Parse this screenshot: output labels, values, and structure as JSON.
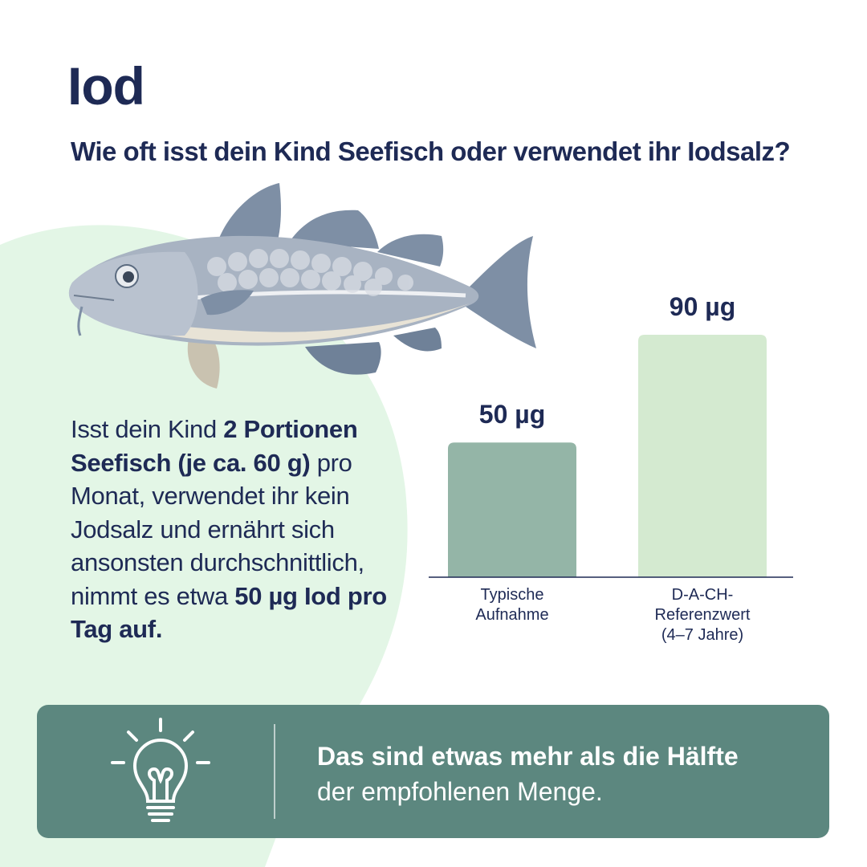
{
  "page": {
    "title": "Iod",
    "question": "Wie oft isst dein Kind Seefisch oder verwendet ihr Iodsalz?"
  },
  "body_text": {
    "part1": "Isst dein Kind ",
    "part2": "2 Portionen Seefisch (je ca. 60 g)",
    "part3": " pro Monat, verwendet ihr kein Jodsalz und ernährt sich ansonsten durchschnittlich, nimmt es etwa ",
    "part4": "50 µg Iod pro Tag auf."
  },
  "chart_data": {
    "type": "bar",
    "categories": [
      [
        "Typische",
        "Aufnahme"
      ],
      [
        "D-A-CH-",
        "Referenzwert",
        "(4–7 Jahre)"
      ]
    ],
    "values": [
      50,
      90
    ],
    "value_labels": [
      "50 µg",
      "90 µg"
    ],
    "colors": [
      "#94b5a7",
      "#d4ead0"
    ],
    "ylim": [
      0,
      90
    ],
    "grid": false
  },
  "tip": {
    "strong": "Das sind etwas mehr als die Hälfte",
    "normal": "der empfohlenen Menge."
  },
  "icons": {
    "fish": "fish-illustration",
    "bulb": "lightbulb-icon"
  },
  "colors": {
    "navy": "#1e2a55",
    "mint": "#e3f6e6",
    "tip_bg": "#5c877f"
  }
}
